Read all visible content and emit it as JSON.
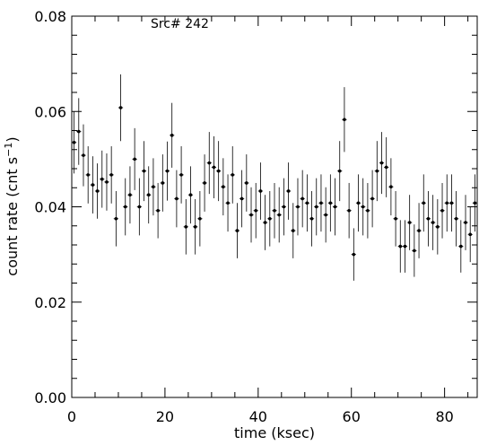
{
  "chart_data": {
    "type": "scatter",
    "title": "Src# 242",
    "xlabel": "time (ksec)",
    "ylabel_base": "count rate (cnt s",
    "ylabel_sup": "−1",
    "ylabel_close": ")",
    "xlim": [
      0,
      87
    ],
    "ylim": [
      0,
      0.08
    ],
    "xticks": [
      0,
      20,
      40,
      60,
      80
    ],
    "xtick_labels": [
      "0",
      "20",
      "40",
      "60",
      "80"
    ],
    "yticks": [
      0,
      0.02,
      0.04,
      0.06,
      0.08
    ],
    "ytick_labels": [
      "0.00",
      "0.02",
      "0.04",
      "0.06",
      "0.08"
    ],
    "grid": false,
    "bin_width_ksec": 1,
    "series": [
      {
        "x": [
          0.5,
          1.5,
          2.5,
          3.5,
          4.5,
          5.5,
          6.5,
          7.5,
          8.5,
          9.5,
          10.5,
          11.5,
          12.5,
          13.5,
          14.5,
          15.5,
          16.5,
          17.5,
          18.5,
          19.5,
          20.5,
          21.5,
          22.5,
          23.5,
          24.5,
          25.5,
          26.5,
          27.5,
          28.5,
          29.5,
          30.5,
          31.5,
          32.5,
          33.5,
          34.5,
          35.5,
          36.5,
          37.5,
          38.5,
          39.5,
          40.5,
          41.5,
          42.5,
          43.5,
          44.5,
          45.5,
          46.5,
          47.5,
          48.5,
          49.5,
          50.5,
          51.5,
          52.5,
          53.5,
          54.5,
          55.5,
          56.5,
          57.5,
          58.5,
          59.5,
          60.5,
          61.5,
          62.5,
          63.5,
          64.5,
          65.5,
          66.5,
          67.5,
          68.5,
          69.5,
          70.5,
          71.5,
          72.5,
          73.5,
          74.5,
          75.5,
          76.5,
          77.5,
          78.5,
          79.5,
          80.5,
          81.5,
          82.5,
          83.5,
          84.5,
          85.5,
          86.5
        ],
        "y": [
          0.0535,
          0.0558,
          0.0508,
          0.0467,
          0.0446,
          0.0433,
          0.0458,
          0.0452,
          0.0467,
          0.0375,
          0.0608,
          0.04,
          0.0425,
          0.05,
          0.04,
          0.0475,
          0.0425,
          0.0442,
          0.0392,
          0.045,
          0.0475,
          0.055,
          0.0417,
          0.0467,
          0.0358,
          0.0425,
          0.0358,
          0.0375,
          0.045,
          0.0492,
          0.0483,
          0.0475,
          0.0442,
          0.0408,
          0.0467,
          0.035,
          0.0417,
          0.045,
          0.0383,
          0.0392,
          0.0433,
          0.0367,
          0.0375,
          0.0392,
          0.0383,
          0.04,
          0.0433,
          0.035,
          0.04,
          0.0417,
          0.0408,
          0.0375,
          0.04,
          0.0408,
          0.0383,
          0.0408,
          0.04,
          0.0475,
          0.0583,
          0.0392,
          0.03,
          0.0408,
          0.04,
          0.0392,
          0.0417,
          0.0475,
          0.0492,
          0.0483,
          0.0442,
          0.0375,
          0.0317,
          0.0317,
          0.0367,
          0.0308,
          0.035,
          0.0408,
          0.0375,
          0.0367,
          0.0358,
          0.0392,
          0.0408,
          0.0408,
          0.0375,
          0.0317,
          0.0367,
          0.0342,
          0.0408
        ],
        "err": [
          0.0065,
          0.007,
          0.0065,
          0.006,
          0.006,
          0.0058,
          0.006,
          0.006,
          0.006,
          0.0058,
          0.007,
          0.006,
          0.006,
          0.0065,
          0.006,
          0.0063,
          0.006,
          0.006,
          0.0058,
          0.006,
          0.0062,
          0.0068,
          0.006,
          0.006,
          0.0058,
          0.006,
          0.0058,
          0.0058,
          0.006,
          0.0065,
          0.0065,
          0.0063,
          0.006,
          0.006,
          0.006,
          0.0058,
          0.006,
          0.006,
          0.0058,
          0.0058,
          0.006,
          0.0058,
          0.0058,
          0.0058,
          0.0058,
          0.006,
          0.006,
          0.0058,
          0.006,
          0.006,
          0.006,
          0.0058,
          0.006,
          0.006,
          0.0058,
          0.006,
          0.006,
          0.0063,
          0.0068,
          0.0058,
          0.0055,
          0.006,
          0.006,
          0.0058,
          0.006,
          0.0063,
          0.0065,
          0.0063,
          0.006,
          0.0058,
          0.0055,
          0.0055,
          0.0058,
          0.0055,
          0.0058,
          0.006,
          0.0058,
          0.0058,
          0.0058,
          0.0058,
          0.006,
          0.006,
          0.0058,
          0.0055,
          0.0058,
          0.0058,
          0.006
        ]
      }
    ]
  }
}
